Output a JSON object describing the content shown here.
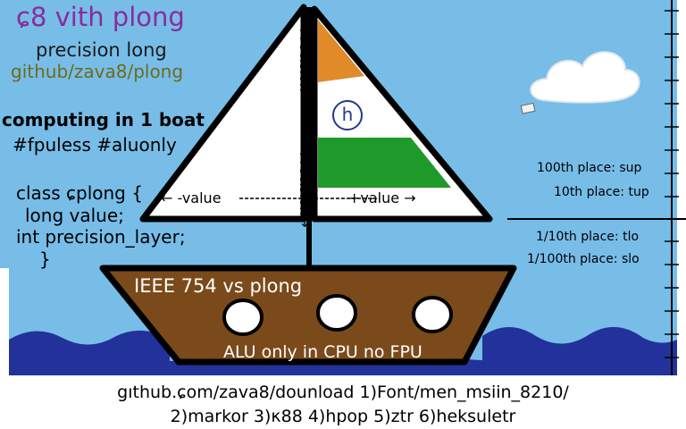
{
  "title": "ɕ8 vith plong",
  "subtitle": "precision long",
  "repo": "github/zava8/plong",
  "heading": "computing in 1 boat",
  "tags": "#fpuless #aluonly",
  "code_lines": [
    "class ɕplong {",
    "long value;",
    "int precision_layer;",
    "}"
  ],
  "sail": {
    "precision_top": "←Precision----",
    "precision_bottom": "Precision→",
    "left_value": "← -value",
    "right_value": "+value →",
    "logo_letter": "h"
  },
  "ruler_labels": [
    "100th place: sup",
    "10th place: tup",
    "1/10th place: tlo",
    "1/100th place: slo"
  ],
  "deck_labels": [
    "IEEE 754 vs plong",
    "ALU only in CPU no FPU"
  ],
  "footer": [
    "gıthub.ɕom/zava8/dounload 1)Font/men_msiin_8210/",
    "2)markor 3)κ88 4)hpop 5)ztr 6)heksuletr"
  ],
  "colors": {
    "sky": "#77bde8",
    "water": "#23329a",
    "hull": "#7a4a1a",
    "saffron": "#e08a2a",
    "green": "#1f9a2a",
    "title": "#8a2b9c"
  }
}
